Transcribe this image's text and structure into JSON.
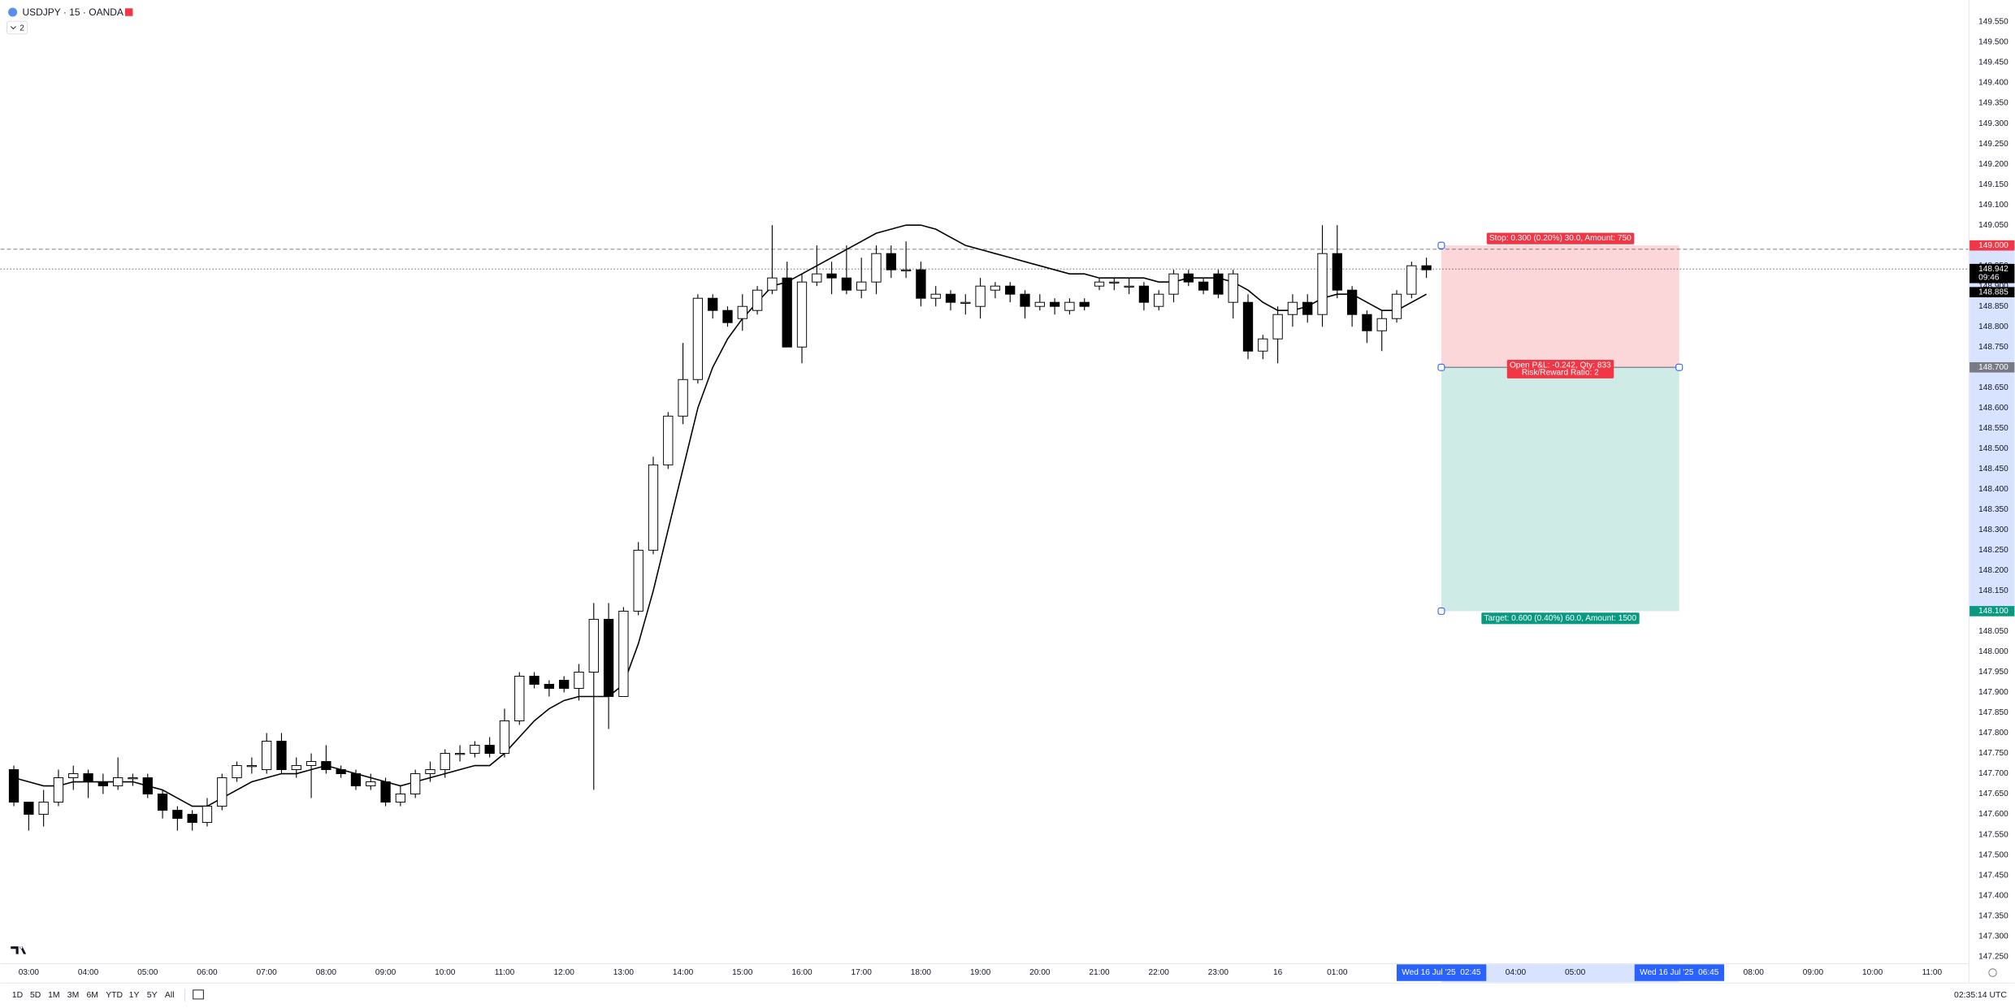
{
  "header": {
    "symbol": "USDJPY · 15 · OANDA",
    "indicators": "2"
  },
  "toolbar": {
    "ranges": [
      "1D",
      "5D",
      "1M",
      "3M",
      "6M",
      "YTD",
      "1Y",
      "5Y",
      "All"
    ],
    "clock": "02:35:14 UTC"
  },
  "chart_data": {
    "type": "candlestick",
    "up_color": "#ffffff",
    "down_color": "#000000",
    "border_color": "#000000",
    "xlim": [
      2.525,
      35.61
    ],
    "ylim": [
      147.234,
      149.604
    ],
    "grid": false,
    "x": [
      2.75,
      3,
      3.25,
      3.5,
      3.75,
      4,
      4.25,
      4.5,
      4.75,
      5,
      5.25,
      5.5,
      5.75,
      6,
      6.25,
      6.5,
      6.75,
      7,
      7.25,
      7.5,
      7.75,
      8,
      8.25,
      8.5,
      8.75,
      9,
      9.25,
      9.5,
      9.75,
      10,
      10.25,
      10.5,
      10.75,
      11,
      11.25,
      11.5,
      11.75,
      12,
      12.25,
      12.5,
      12.75,
      13,
      13.25,
      13.5,
      13.75,
      14,
      14.25,
      14.5,
      14.75,
      15,
      15.25,
      15.5,
      15.75,
      16,
      16.25,
      16.5,
      16.75,
      17,
      17.25,
      17.5,
      17.75,
      18,
      18.25,
      18.5,
      18.75,
      19,
      19.25,
      19.5,
      19.75,
      20,
      20.25,
      20.5,
      20.75,
      21,
      21.25,
      21.5,
      21.75,
      22,
      22.25,
      22.5,
      22.75,
      23,
      23.25,
      23.5,
      23.75,
      24,
      24.25,
      24.5,
      24.75,
      25,
      25.25,
      25.5,
      25.75,
      26,
      26.25,
      26.5
    ],
    "open": [
      147.71,
      147.63,
      147.6,
      147.63,
      147.69,
      147.7,
      147.68,
      147.67,
      147.69,
      147.69,
      147.65,
      147.61,
      147.6,
      147.58,
      147.62,
      147.69,
      147.72,
      147.71,
      147.78,
      147.71,
      147.72,
      147.73,
      147.71,
      147.7,
      147.67,
      147.68,
      147.63,
      147.65,
      147.7,
      147.71,
      147.75,
      147.75,
      147.77,
      147.75,
      147.83,
      147.94,
      147.92,
      147.93,
      147.91,
      147.95,
      148.08,
      147.89,
      148.1,
      148.25,
      148.46,
      148.58,
      148.67,
      148.87,
      148.84,
      148.82,
      148.84,
      148.89,
      148.92,
      148.75,
      148.91,
      148.93,
      148.92,
      148.89,
      148.91,
      148.98,
      148.94,
      148.94,
      148.87,
      148.88,
      148.86,
      148.85,
      148.89,
      148.9,
      148.88,
      148.85,
      148.86,
      148.84,
      148.86,
      148.9,
      148.91,
      148.9,
      148.9,
      148.85,
      148.88,
      148.93,
      148.91,
      148.93,
      148.86,
      148.86,
      148.74,
      148.77,
      148.83,
      148.86,
      148.83,
      148.98,
      148.89,
      148.83,
      148.79,
      148.82,
      148.88,
      148.95
    ],
    "high": [
      147.72,
      147.63,
      147.66,
      147.71,
      147.72,
      147.71,
      147.7,
      147.74,
      147.7,
      147.7,
      147.66,
      147.62,
      147.61,
      147.64,
      147.7,
      147.73,
      147.74,
      147.8,
      147.8,
      147.74,
      147.75,
      147.77,
      147.72,
      147.71,
      147.7,
      147.69,
      147.67,
      147.71,
      147.73,
      147.76,
      147.77,
      147.78,
      147.79,
      147.86,
      147.95,
      147.95,
      147.93,
      147.94,
      147.97,
      148.12,
      148.12,
      148.11,
      148.27,
      148.48,
      148.59,
      148.76,
      148.88,
      148.88,
      148.85,
      148.88,
      148.9,
      149.05,
      148.96,
      148.93,
      149.0,
      148.96,
      149.0,
      148.97,
      149.0,
      149.0,
      149.01,
      148.96,
      148.9,
      148.89,
      148.88,
      148.92,
      148.91,
      148.91,
      148.89,
      148.88,
      148.87,
      148.87,
      148.87,
      148.92,
      148.92,
      148.92,
      148.91,
      148.89,
      148.94,
      148.94,
      148.92,
      148.94,
      148.94,
      148.88,
      148.78,
      148.85,
      148.88,
      148.88,
      149.05,
      149.05,
      148.9,
      148.84,
      148.84,
      148.89,
      148.96,
      148.97
    ],
    "low": [
      147.62,
      147.56,
      147.57,
      147.62,
      147.66,
      147.64,
      147.65,
      147.66,
      147.67,
      147.64,
      147.59,
      147.56,
      147.56,
      147.57,
      147.61,
      147.68,
      147.7,
      147.7,
      147.7,
      147.69,
      147.64,
      147.7,
      147.69,
      147.66,
      147.66,
      147.62,
      147.62,
      147.64,
      147.68,
      147.69,
      147.73,
      147.74,
      147.74,
      147.74,
      147.82,
      147.91,
      147.89,
      147.9,
      147.88,
      147.66,
      147.81,
      147.89,
      148.09,
      148.24,
      148.45,
      148.56,
      148.66,
      148.82,
      148.8,
      148.79,
      148.83,
      148.88,
      148.75,
      148.71,
      148.9,
      148.88,
      148.88,
      148.87,
      148.88,
      148.92,
      148.92,
      148.85,
      148.85,
      148.84,
      148.83,
      148.82,
      148.87,
      148.86,
      148.82,
      148.84,
      148.83,
      148.83,
      148.84,
      148.89,
      148.89,
      148.88,
      148.84,
      148.84,
      148.86,
      148.9,
      148.88,
      148.87,
      148.82,
      148.72,
      148.72,
      148.71,
      148.8,
      148.81,
      148.8,
      148.87,
      148.8,
      148.76,
      148.74,
      148.81,
      148.87,
      148.92
    ],
    "close": [
      147.63,
      147.6,
      147.63,
      147.69,
      147.7,
      147.68,
      147.67,
      147.69,
      147.69,
      147.65,
      147.61,
      147.59,
      147.58,
      147.62,
      147.69,
      147.72,
      147.72,
      147.78,
      147.71,
      147.72,
      147.73,
      147.71,
      147.7,
      147.67,
      147.68,
      147.63,
      147.65,
      147.7,
      147.71,
      147.75,
      147.75,
      147.77,
      147.75,
      147.83,
      147.94,
      147.92,
      147.91,
      147.91,
      147.95,
      148.08,
      147.89,
      148.1,
      148.25,
      148.46,
      148.58,
      148.67,
      148.87,
      148.84,
      148.81,
      148.85,
      148.89,
      148.92,
      148.75,
      148.91,
      148.93,
      148.92,
      148.89,
      148.91,
      148.98,
      148.94,
      148.94,
      148.87,
      148.88,
      148.86,
      148.86,
      148.9,
      148.9,
      148.88,
      148.85,
      148.86,
      148.85,
      148.86,
      148.85,
      148.91,
      148.91,
      148.9,
      148.86,
      148.88,
      148.93,
      148.91,
      148.89,
      148.88,
      148.93,
      148.74,
      148.77,
      148.83,
      148.86,
      148.83,
      148.98,
      148.89,
      148.83,
      148.79,
      148.82,
      148.88,
      148.95,
      148.94
    ],
    "line": {
      "color": "#000000",
      "values": [
        147.69,
        147.68,
        147.67,
        147.67,
        147.68,
        147.68,
        147.68,
        147.68,
        147.68,
        147.67,
        147.66,
        147.64,
        147.62,
        147.62,
        147.64,
        147.66,
        147.68,
        147.69,
        147.7,
        147.7,
        147.71,
        147.72,
        147.71,
        147.7,
        147.69,
        147.68,
        147.67,
        147.68,
        147.69,
        147.7,
        147.71,
        147.72,
        147.72,
        147.75,
        147.79,
        147.83,
        147.86,
        147.88,
        147.89,
        147.89,
        147.89,
        147.92,
        148.02,
        148.15,
        148.3,
        148.45,
        148.6,
        148.7,
        148.77,
        148.82,
        148.86,
        148.9,
        148.91,
        148.93,
        148.95,
        148.97,
        148.99,
        149.01,
        149.03,
        149.04,
        149.05,
        149.05,
        149.04,
        149.02,
        149.0,
        148.99,
        148.98,
        148.97,
        148.96,
        148.95,
        148.94,
        148.93,
        148.93,
        148.92,
        148.92,
        148.92,
        148.92,
        148.91,
        148.91,
        148.92,
        148.92,
        148.92,
        148.91,
        148.89,
        148.86,
        148.84,
        148.84,
        148.85,
        148.87,
        148.88,
        148.88,
        148.86,
        148.84,
        148.84,
        148.86,
        148.88
      ]
    },
    "position": {
      "start": 26.75,
      "end": 30.75,
      "stop": 149.0,
      "entry": 148.7,
      "target": 148.1,
      "stop_label": "Stop: 0.300 (0.20%) 30.0, Amount: 750",
      "pnl_label": "Open P&L: -0.242, Qty: 833",
      "ratio_label": "Risk/Reward Ratio: 2",
      "target_label": "Target: 0.600 (0.40%) 60.0, Amount: 1500",
      "stop_color": "#f23645",
      "target_color": "#089981",
      "entry_color": "#787b86"
    },
    "price_badges": [
      {
        "value": 149.0,
        "label": "149.000",
        "color": "#f23645"
      },
      {
        "value": 148.942,
        "label": "148.942",
        "color": "#000000",
        "countdown": "09:46"
      },
      {
        "value": 148.885,
        "label": "148.885",
        "color": "#000000"
      },
      {
        "value": 148.7,
        "label": "148.700",
        "color": "#787b86"
      },
      {
        "value": 148.1,
        "label": "148.100",
        "color": "#089981"
      }
    ],
    "time_badges": [
      {
        "value": 26.75,
        "label": "Wed 16 Jul '25  02:45"
      },
      {
        "value": 30.75,
        "label": "Wed 16 Jul '25  06:45"
      }
    ],
    "xticks": [
      {
        "value": 3,
        "label": "03:00"
      },
      {
        "value": 4,
        "label": "04:00"
      },
      {
        "value": 5,
        "label": "05:00"
      },
      {
        "value": 6,
        "label": "06:00"
      },
      {
        "value": 7,
        "label": "07:00"
      },
      {
        "value": 8,
        "label": "08:00"
      },
      {
        "value": 9,
        "label": "09:00"
      },
      {
        "value": 10,
        "label": "10:00"
      },
      {
        "value": 11,
        "label": "11:00"
      },
      {
        "value": 12,
        "label": "12:00"
      },
      {
        "value": 13,
        "label": "13:00"
      },
      {
        "value": 14,
        "label": "14:00"
      },
      {
        "value": 15,
        "label": "15:00"
      },
      {
        "value": 16,
        "label": "16:00"
      },
      {
        "value": 17,
        "label": "17:00"
      },
      {
        "value": 18,
        "label": "18:00"
      },
      {
        "value": 19,
        "label": "19:00"
      },
      {
        "value": 20,
        "label": "20:00"
      },
      {
        "value": 21,
        "label": "21:00"
      },
      {
        "value": 22,
        "label": "22:00"
      },
      {
        "value": 23,
        "label": "23:00"
      },
      {
        "value": 24,
        "label": "16"
      },
      {
        "value": 25,
        "label": "01:00"
      },
      {
        "value": 28,
        "label": "04:00"
      },
      {
        "value": 29,
        "label": "05:00"
      },
      {
        "value": 32,
        "label": "08:00"
      },
      {
        "value": 33,
        "label": "09:00"
      },
      {
        "value": 34,
        "label": "10:00"
      },
      {
        "value": 35,
        "label": "11:00"
      }
    ],
    "yticks": [
      {
        "value": 147.25,
        "label": "147.250"
      },
      {
        "value": 147.3,
        "label": "147.300"
      },
      {
        "value": 147.35,
        "label": "147.350"
      },
      {
        "value": 147.4,
        "label": "147.400"
      },
      {
        "value": 147.45,
        "label": "147.450"
      },
      {
        "value": 147.5,
        "label": "147.500"
      },
      {
        "value": 147.55,
        "label": "147.550"
      },
      {
        "value": 147.6,
        "label": "147.600"
      },
      {
        "value": 147.65,
        "label": "147.650"
      },
      {
        "value": 147.7,
        "label": "147.700"
      },
      {
        "value": 147.75,
        "label": "147.750"
      },
      {
        "value": 147.8,
        "label": "147.800"
      },
      {
        "value": 147.85,
        "label": "147.850"
      },
      {
        "value": 147.9,
        "label": "147.900"
      },
      {
        "value": 147.95,
        "label": "147.950"
      },
      {
        "value": 148,
        "label": "148.000"
      },
      {
        "value": 148.05,
        "label": "148.050"
      },
      {
        "value": 148.1,
        "label": "148.100"
      },
      {
        "value": 148.15,
        "label": "148.150"
      },
      {
        "value": 148.2,
        "label": "148.200"
      },
      {
        "value": 148.25,
        "label": "148.250"
      },
      {
        "value": 148.3,
        "label": "148.300"
      },
      {
        "value": 148.35,
        "label": "148.350"
      },
      {
        "value": 148.4,
        "label": "148.400"
      },
      {
        "value": 148.45,
        "label": "148.450"
      },
      {
        "value": 148.5,
        "label": "148.500"
      },
      {
        "value": 148.55,
        "label": "148.550"
      },
      {
        "value": 148.6,
        "label": "148.600"
      },
      {
        "value": 148.65,
        "label": "148.650"
      },
      {
        "value": 148.7,
        "label": "148.700"
      },
      {
        "value": 148.75,
        "label": "148.750"
      },
      {
        "value": 148.8,
        "label": "148.800"
      },
      {
        "value": 148.85,
        "label": "148.850"
      },
      {
        "value": 148.9,
        "label": "148.900"
      },
      {
        "value": 148.95,
        "label": "148.950"
      },
      {
        "value": 149,
        "label": "149.000"
      },
      {
        "value": 149.05,
        "label": "149.050"
      },
      {
        "value": 149.1,
        "label": "149.100"
      },
      {
        "value": 149.15,
        "label": "149.150"
      },
      {
        "value": 149.2,
        "label": "149.200"
      },
      {
        "value": 149.25,
        "label": "149.250"
      },
      {
        "value": 149.3,
        "label": "149.300"
      },
      {
        "value": 149.35,
        "label": "149.350"
      },
      {
        "value": 149.4,
        "label": "149.400"
      },
      {
        "value": 149.45,
        "label": "149.450"
      },
      {
        "value": 149.5,
        "label": "149.500"
      },
      {
        "value": 149.55,
        "label": "149.550"
      }
    ]
  }
}
